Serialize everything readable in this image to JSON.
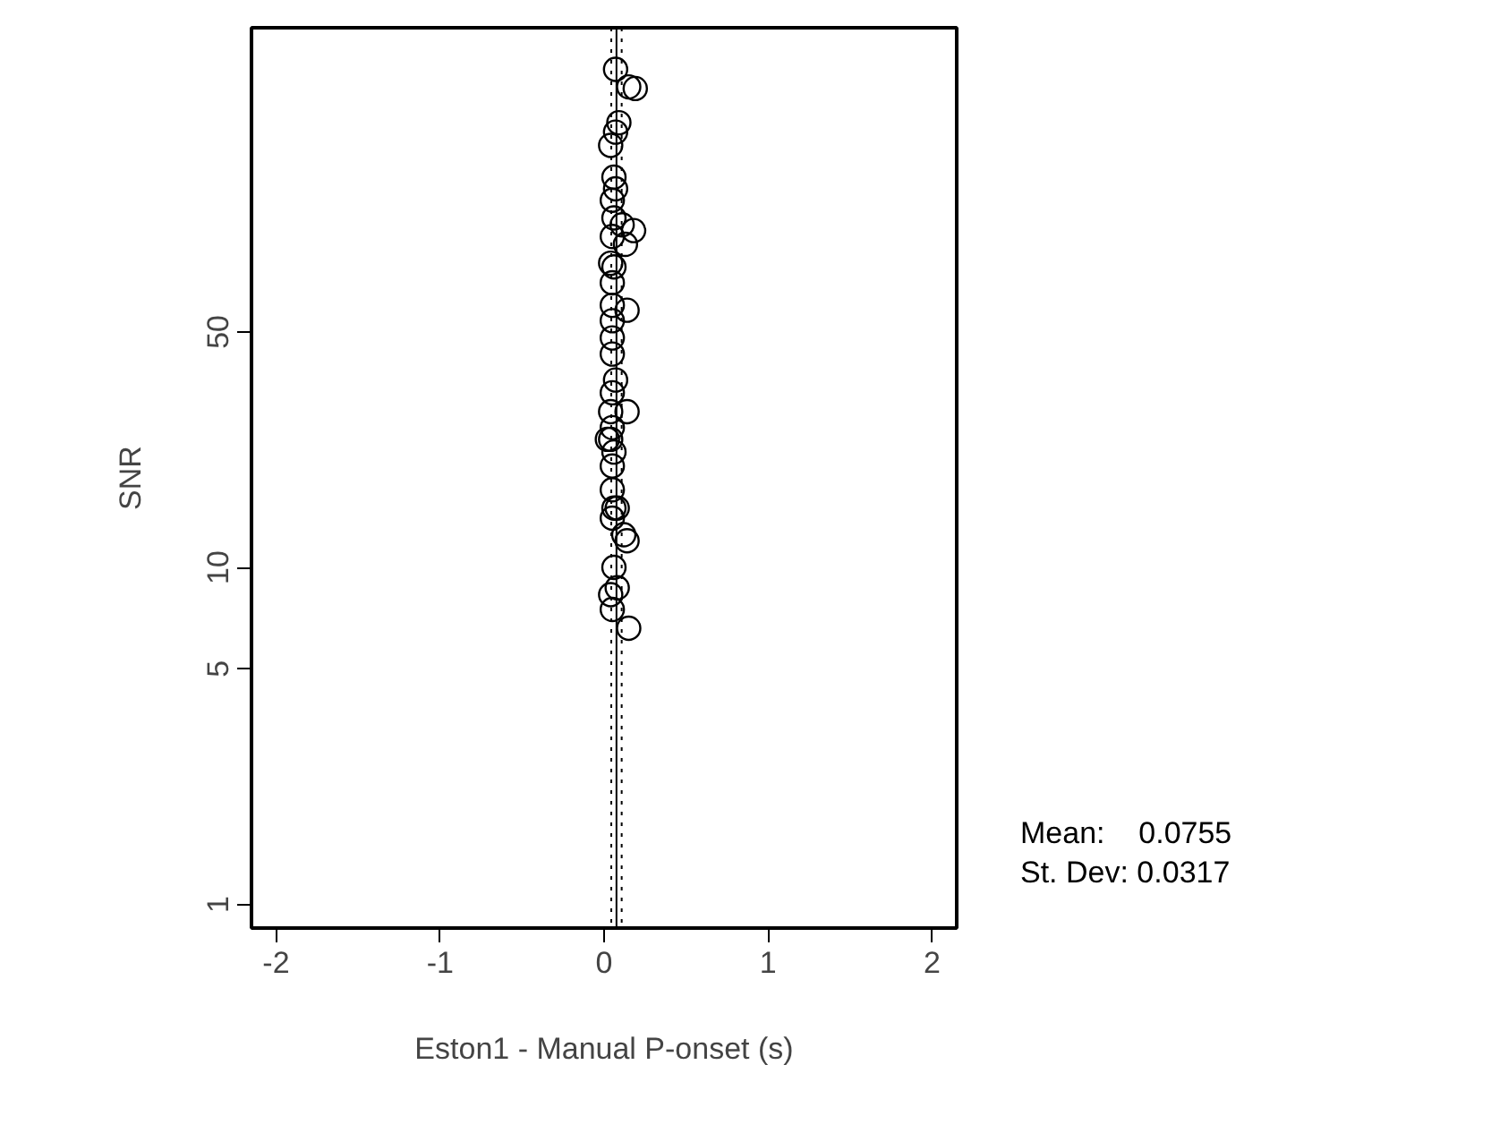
{
  "chart_data": {
    "type": "scatter",
    "xlabel": "Eston1 - Manual P-onset (s)",
    "ylabel": "SNR",
    "x": [
      0.07,
      0.15,
      0.19,
      0.09,
      0.07,
      0.04,
      0.06,
      0.07,
      0.05,
      0.06,
      0.11,
      0.18,
      0.05,
      0.13,
      0.04,
      0.06,
      0.05,
      0.05,
      0.14,
      0.05,
      0.05,
      0.05,
      0.07,
      0.05,
      0.14,
      0.04,
      0.05,
      0.04,
      0.02,
      0.06,
      0.05,
      0.05,
      0.06,
      0.08,
      0.12,
      0.14,
      0.05,
      0.06,
      0.08,
      0.04,
      0.05,
      0.15
    ],
    "values": [
      301,
      267,
      264,
      209,
      196,
      179,
      144,
      133,
      123,
      109,
      104,
      100,
      96,
      91,
      80,
      78,
      70,
      60,
      58,
      54,
      48,
      43,
      36,
      33,
      29,
      29,
      26,
      24,
      24,
      22,
      20,
      17,
      15,
      15,
      12.5,
      12,
      14,
      10,
      8.7,
      8.3,
      7.5,
      6.6
    ],
    "color": "#000000",
    "marker": "circle",
    "log": "y",
    "grid": false,
    "xlim": [
      -2.15,
      2.15
    ],
    "xticks": [
      -2,
      -1,
      0,
      1,
      2
    ],
    "ylim": [
      0.85,
      400
    ],
    "yticks": [
      1,
      5,
      10,
      50
    ],
    "ref_lines": [
      {
        "axis": "x",
        "value": 0.0755,
        "line_style": "solid"
      },
      {
        "axis": "x",
        "value": 0.0438,
        "line_style": "dotted"
      },
      {
        "axis": "x",
        "value": 0.1072,
        "line_style": "dotted"
      }
    ],
    "annotations": [
      "Mean:    0.0755",
      "St. Dev: 0.0317"
    ]
  }
}
